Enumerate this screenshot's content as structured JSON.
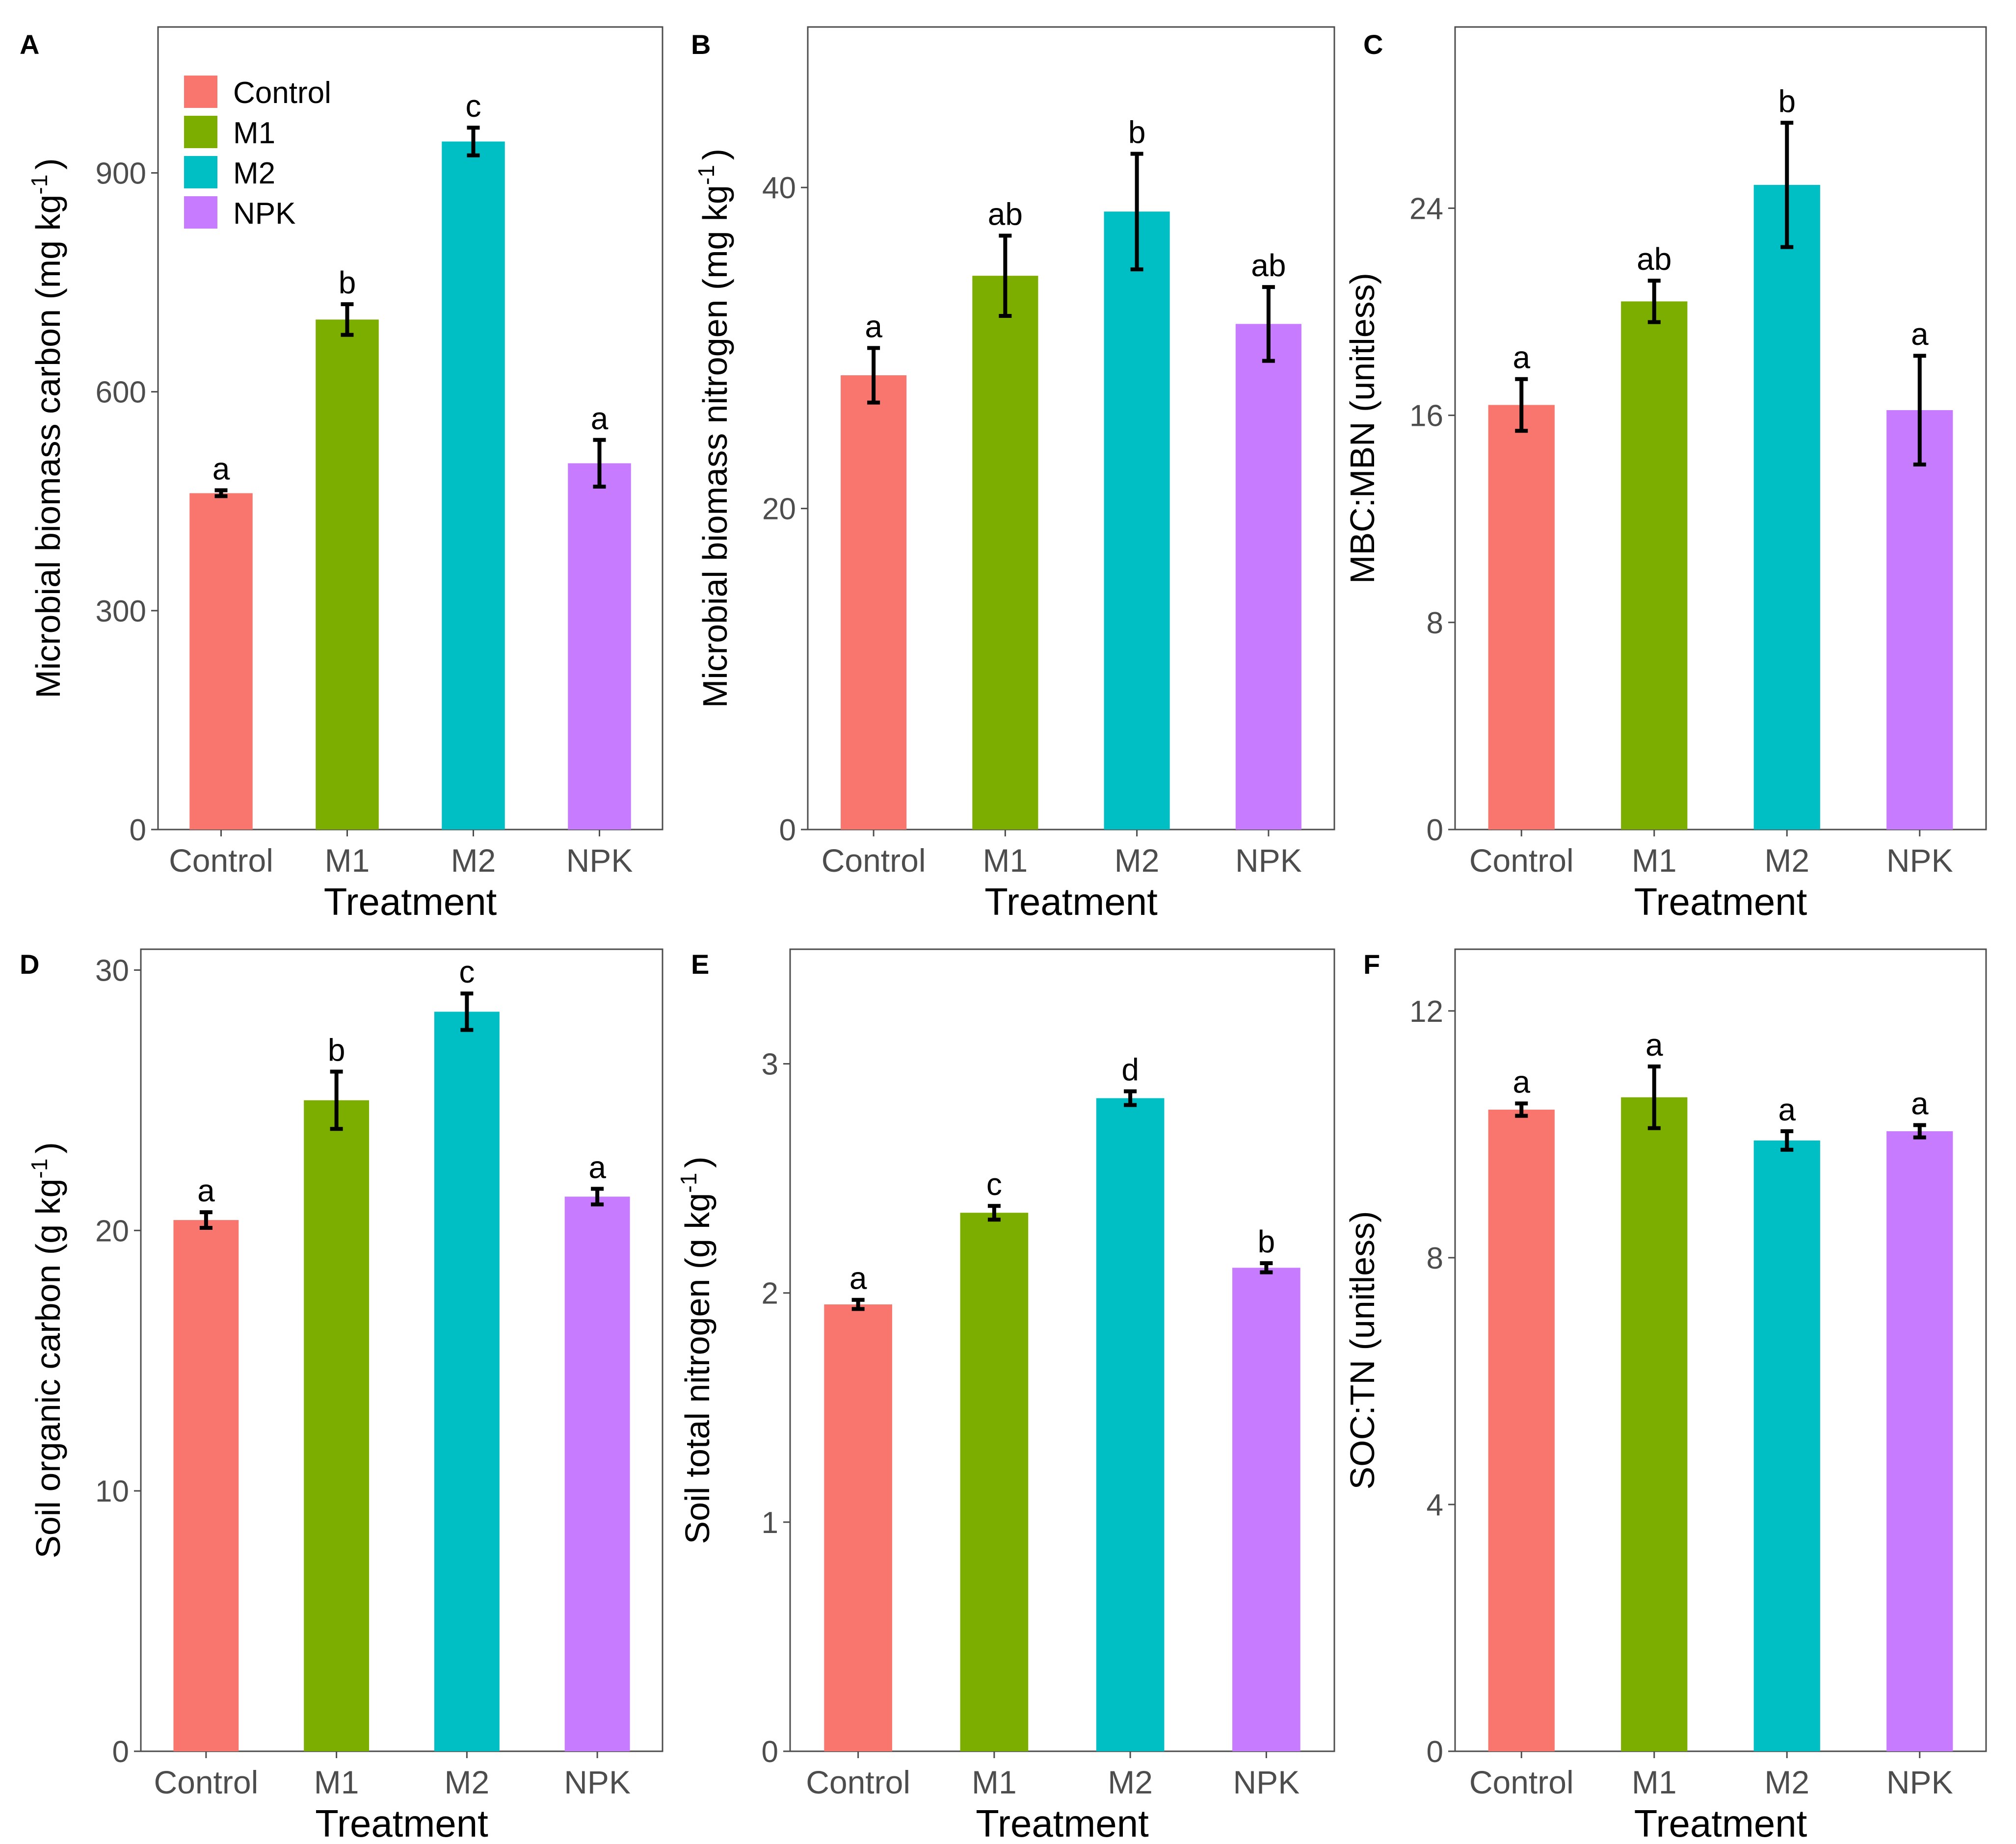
{
  "legend": {
    "items": [
      {
        "label": "Control",
        "color": "#F8766D"
      },
      {
        "label": "M1",
        "color": "#7CAE00"
      },
      {
        "label": "M2",
        "color": "#00BFC4"
      },
      {
        "label": "NPK",
        "color": "#C77CFF"
      }
    ]
  },
  "chart_data": [
    {
      "panel": "A",
      "type": "bar",
      "title": "",
      "xlabel": "Treatment",
      "ylabel": "Microbial biomass carbon (mg  kg",
      "ylabel_sup": "-1",
      "ylabel_tail": ")",
      "categories": [
        "Control",
        "M1",
        "M2",
        "NPK"
      ],
      "values": [
        461,
        699,
        943,
        502
      ],
      "errors": [
        4,
        21,
        19,
        32
      ],
      "letters": [
        "a",
        "b",
        "c",
        "a"
      ],
      "ylim": [
        0,
        1100
      ],
      "ticks": [
        0,
        300,
        600,
        900
      ],
      "tick_labels": [
        "0",
        "300",
        "600",
        "900"
      ]
    },
    {
      "panel": "B",
      "type": "bar",
      "title": "",
      "xlabel": "Treatment",
      "ylabel": "Microbial biomass nitrogen (mg  kg",
      "ylabel_sup": "-1",
      "ylabel_tail": ")",
      "categories": [
        "Control",
        "M1",
        "M2",
        "NPK"
      ],
      "values": [
        28.3,
        34.5,
        38.5,
        31.5
      ],
      "errors": [
        1.7,
        2.5,
        3.6,
        2.3
      ],
      "letters": [
        "a",
        "ab",
        "b",
        "ab"
      ],
      "ylim": [
        0,
        50
      ],
      "ticks": [
        0,
        20,
        40
      ],
      "tick_labels": [
        "0",
        "20",
        "40"
      ]
    },
    {
      "panel": "C",
      "type": "bar",
      "title": "",
      "xlabel": "Treatment",
      "ylabel": "MBC:MBN (unitless)",
      "ylabel_sup": "",
      "ylabel_tail": "",
      "categories": [
        "Control",
        "M1",
        "M2",
        "NPK"
      ],
      "values": [
        16.4,
        20.4,
        24.9,
        16.2
      ],
      "errors": [
        1.0,
        0.8,
        2.4,
        2.1
      ],
      "letters": [
        "a",
        "ab",
        "b",
        "a"
      ],
      "ylim": [
        0,
        31
      ],
      "ticks": [
        0,
        8,
        16,
        24
      ],
      "tick_labels": [
        "0",
        "8",
        "16",
        "24"
      ]
    },
    {
      "panel": "D",
      "type": "bar",
      "title": "",
      "xlabel": "Treatment",
      "ylabel": "Soil organic carbon (g  kg",
      "ylabel_sup": "-1",
      "ylabel_tail": ")",
      "categories": [
        "Control",
        "M1",
        "M2",
        "NPK"
      ],
      "values": [
        20.4,
        25.0,
        28.4,
        21.3
      ],
      "errors": [
        0.3,
        1.1,
        0.7,
        0.3
      ],
      "letters": [
        "a",
        "b",
        "c",
        "a"
      ],
      "ylim": [
        0,
        30.8
      ],
      "ticks": [
        0,
        10,
        20,
        30
      ],
      "tick_labels": [
        "0",
        "10",
        "20",
        "30"
      ]
    },
    {
      "panel": "E",
      "type": "bar",
      "title": "",
      "xlabel": "Treatment",
      "ylabel": "Soil total nitrogen (g  kg",
      "ylabel_sup": "-1",
      "ylabel_tail": ")",
      "categories": [
        "Control",
        "M1",
        "M2",
        "NPK"
      ],
      "values": [
        1.95,
        2.35,
        2.85,
        2.11
      ],
      "errors": [
        0.02,
        0.03,
        0.03,
        0.02
      ],
      "letters": [
        "a",
        "c",
        "d",
        "b"
      ],
      "ylim": [
        0,
        3.5
      ],
      "ticks": [
        0,
        1,
        2,
        3
      ],
      "tick_labels": [
        "0",
        "1",
        "2",
        "3"
      ]
    },
    {
      "panel": "F",
      "type": "bar",
      "title": "",
      "xlabel": "Treatment",
      "ylabel": "SOC:TN (unitless)",
      "ylabel_sup": "",
      "ylabel_tail": "",
      "categories": [
        "Control",
        "M1",
        "M2",
        "NPK"
      ],
      "values": [
        10.4,
        10.6,
        9.9,
        10.05
      ],
      "errors": [
        0.1,
        0.5,
        0.15,
        0.1
      ],
      "letters": [
        "a",
        "a",
        "a",
        "a"
      ],
      "ylim": [
        0,
        13
      ],
      "ticks": [
        0,
        4,
        8,
        12
      ],
      "tick_labels": [
        "0",
        "4",
        "8",
        "12"
      ]
    }
  ]
}
